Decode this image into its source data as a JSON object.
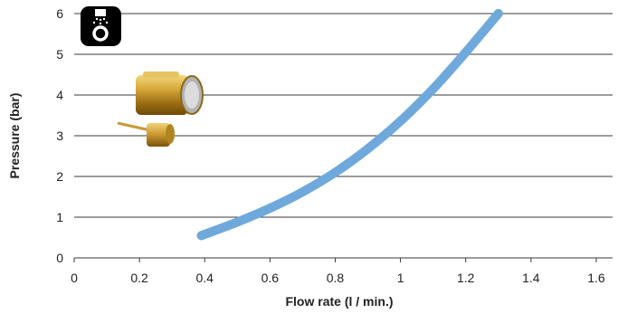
{
  "chart_data": {
    "type": "line",
    "xlabel": "Flow rate (l / min.)",
    "ylabel": "Pressure (bar)",
    "xlim": [
      0,
      1.65
    ],
    "ylim": [
      0,
      6
    ],
    "x_ticks": [
      "0",
      "0.2",
      "0.4",
      "0.6",
      "0.8",
      "1",
      "1.2",
      "1.4",
      "1.6"
    ],
    "y_ticks": [
      "0",
      "1",
      "2",
      "3",
      "4",
      "5",
      "6"
    ],
    "grid": "horizontal",
    "series": [
      {
        "color": "#6fa9dc",
        "x": [
          0.39,
          0.5,
          0.6,
          0.7,
          0.8,
          0.9,
          1.0,
          1.1,
          1.2,
          1.3
        ],
        "y": [
          0.55,
          0.88,
          1.22,
          1.62,
          2.1,
          2.68,
          3.36,
          4.15,
          5.05,
          6.0
        ]
      }
    ],
    "icons": {
      "badge": "nozzle-spray-icon",
      "product": "brass-nozzle-fitting-icon"
    }
  }
}
